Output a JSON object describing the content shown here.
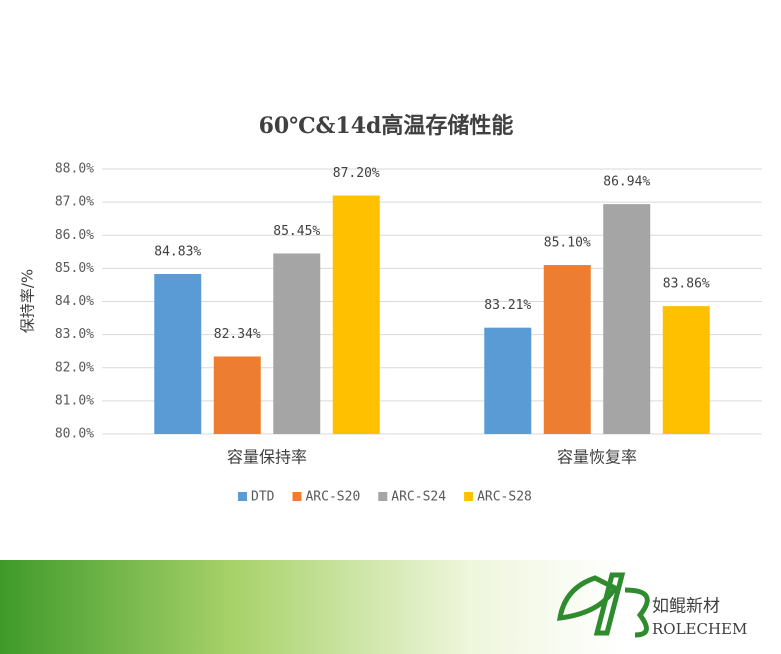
{
  "chart_data": {
    "type": "bar",
    "title": "60℃&14d高温存储性能",
    "y_label": "保持率/%",
    "categories": [
      "容量保持率",
      "容量恢复率"
    ],
    "series": [
      {
        "name": "DTD",
        "color": "#5b9bd5",
        "values": [
          84.83,
          83.21
        ],
        "value_labels": [
          "84.83%",
          "83.21%"
        ]
      },
      {
        "name": "ARC-S20",
        "color": "#ed7d31",
        "values": [
          82.34,
          85.1
        ],
        "value_labels": [
          "82.34%",
          "85.10%"
        ]
      },
      {
        "name": "ARC-S24",
        "color": "#a5a5a5",
        "values": [
          85.45,
          86.94
        ],
        "value_labels": [
          "85.45%",
          "86.94%"
        ]
      },
      {
        "name": "ARC-S28",
        "color": "#ffc000",
        "values": [
          87.2,
          83.86
        ],
        "value_labels": [
          "87.20%",
          "83.86%"
        ]
      }
    ],
    "ylim": [
      80,
      88
    ],
    "yticks": [
      {
        "value": 80,
        "label": "80.0%"
      },
      {
        "value": 81,
        "label": "81.0%"
      },
      {
        "value": 82,
        "label": "82.0%"
      },
      {
        "value": 83,
        "label": "83.0%"
      },
      {
        "value": 84,
        "label": "84.0%"
      },
      {
        "value": 85,
        "label": "85.0%"
      },
      {
        "value": 86,
        "label": "86.0%"
      },
      {
        "value": 87,
        "label": "87.0%"
      },
      {
        "value": 88,
        "label": "88.0%"
      }
    ],
    "grid": true,
    "legend": "bottom"
  },
  "logo": {
    "name": "如鲲新材",
    "latin": "ROLECHEM"
  }
}
